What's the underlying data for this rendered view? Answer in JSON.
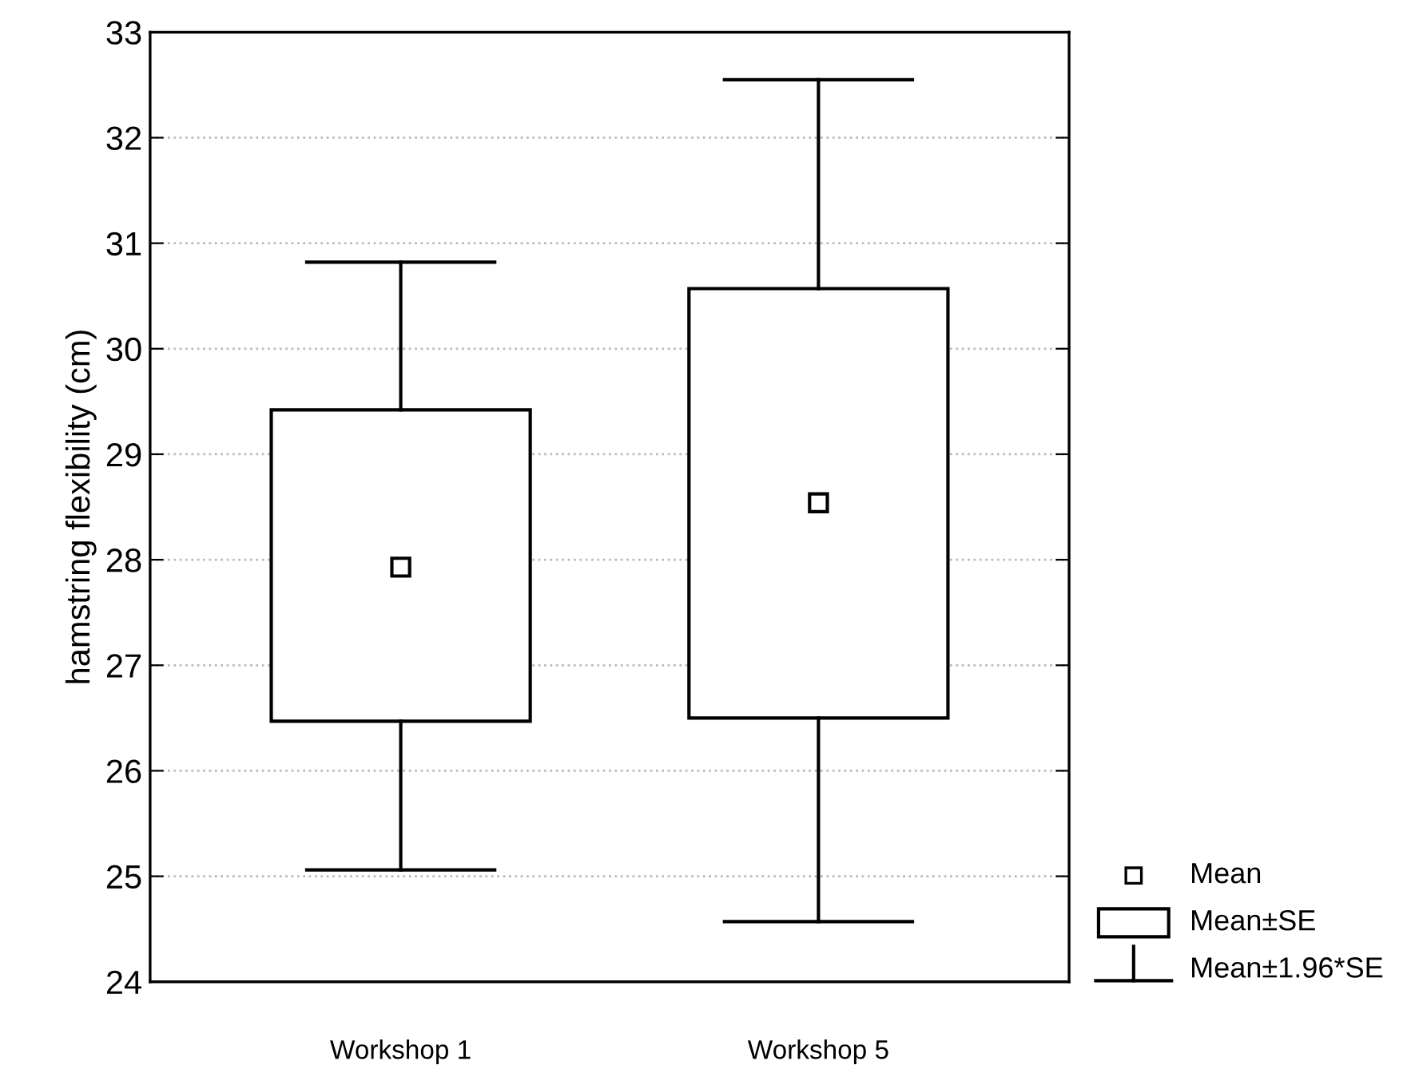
{
  "chart_data": {
    "type": "box",
    "ylabel": "hamstring flexibility (cm)",
    "categories": [
      "Workshop 1",
      "Workshop 5"
    ],
    "boxes": [
      {
        "low": 25.06,
        "q1": 26.47,
        "median": 27.93,
        "q3": 29.42,
        "high": 30.82
      },
      {
        "low": 24.57,
        "q1": 26.5,
        "median": 28.54,
        "q3": 30.57,
        "high": 32.55
      }
    ],
    "ylim": [
      24,
      33
    ],
    "yticks": [
      24,
      25,
      26,
      27,
      28,
      29,
      30,
      31,
      32,
      33
    ],
    "grid": "y",
    "marker": "square",
    "annotations": [
      "Mean",
      "Mean±SE",
      "Mean±1.96*SE"
    ]
  }
}
